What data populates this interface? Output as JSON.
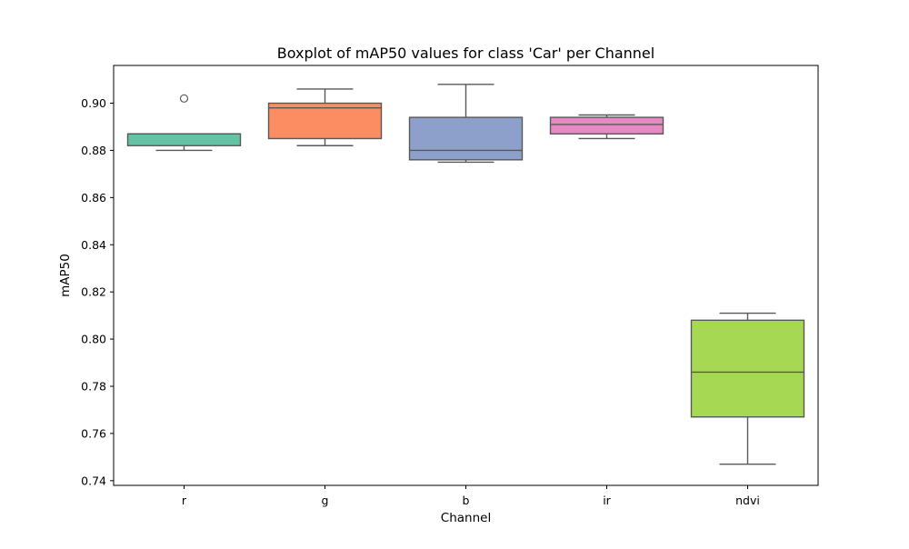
{
  "chart_data": {
    "type": "box",
    "title": "Boxplot of mAP50 values for class 'Car' per Channel",
    "xlabel": "Channel",
    "ylabel": "mAP50",
    "ylim": [
      0.738,
      0.916
    ],
    "yticks": [
      0.74,
      0.76,
      0.78,
      0.8,
      0.82,
      0.84,
      0.86,
      0.88,
      0.9
    ],
    "ytick_labels": [
      "0.74",
      "0.76",
      "0.78",
      "0.80",
      "0.82",
      "0.84",
      "0.86",
      "0.88",
      "0.90"
    ],
    "grid": false,
    "categories": [
      "r",
      "g",
      "b",
      "ir",
      "ndvi"
    ],
    "boxes": [
      {
        "category": "r",
        "whisker_low": 0.88,
        "q1": 0.882,
        "median": 0.887,
        "q3": 0.887,
        "whisker_high": 0.887,
        "outliers": [
          0.902
        ],
        "color": "#66c2a5"
      },
      {
        "category": "g",
        "whisker_low": 0.882,
        "q1": 0.885,
        "median": 0.898,
        "q3": 0.9,
        "whisker_high": 0.906,
        "outliers": [],
        "color": "#fc8d62"
      },
      {
        "category": "b",
        "whisker_low": 0.875,
        "q1": 0.876,
        "median": 0.88,
        "q3": 0.894,
        "whisker_high": 0.908,
        "outliers": [],
        "color": "#8da0cb"
      },
      {
        "category": "ir",
        "whisker_low": 0.885,
        "q1": 0.887,
        "median": 0.891,
        "q3": 0.894,
        "whisker_high": 0.895,
        "outliers": [],
        "color": "#e78ac3"
      },
      {
        "category": "ndvi",
        "whisker_low": 0.747,
        "q1": 0.767,
        "median": 0.786,
        "q3": 0.808,
        "whisker_high": 0.811,
        "outliers": [],
        "color": "#a6d854"
      }
    ],
    "line_color": "#595959"
  }
}
